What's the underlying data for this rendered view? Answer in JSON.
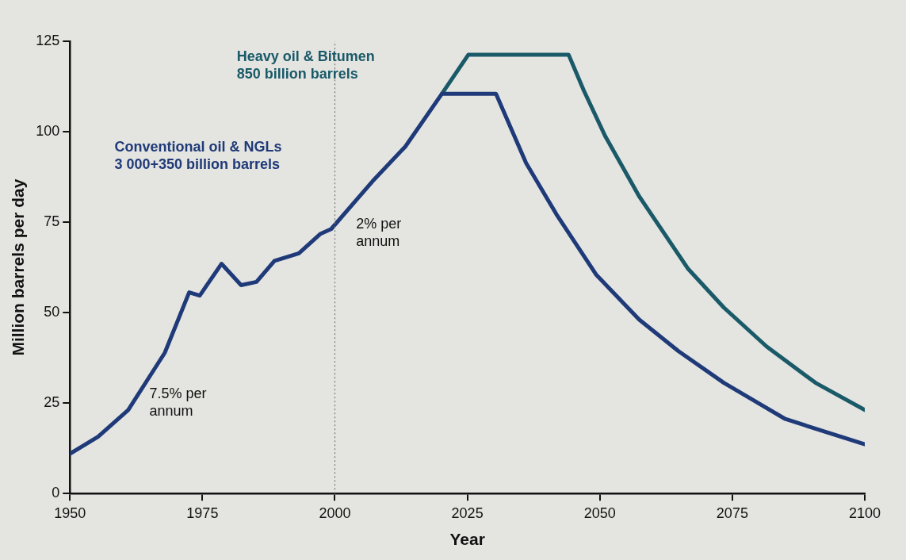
{
  "chart_data": {
    "type": "line",
    "xlabel": "Year",
    "ylabel": "Million barrels per day",
    "xlim": [
      1950,
      2100
    ],
    "xticks": [
      1950,
      1975,
      2000,
      2025,
      2050,
      2075,
      2100
    ],
    "ylim": [
      0,
      125
    ],
    "yticks": [
      0,
      25,
      50,
      75,
      100,
      125
    ],
    "series": [
      {
        "name": "Conventional oil & NGLs\n3 000+350 billion barrels",
        "color": "#1f3a78",
        "x": [
          1950,
          1955.3,
          1961,
          1967.9,
          1972.5,
          1974.5,
          1978.6,
          1982.3,
          1985.2,
          1988.6,
          1993.2,
          1997.3,
          1999.3,
          2007.1,
          2013.3,
          2020.2,
          2030.4,
          2036.1,
          2041.8,
          2049.3,
          2057.4,
          2064.8,
          2073.4,
          2085,
          2100
        ],
        "values": [
          11,
          15.7,
          23.1,
          38.9,
          55.6,
          54.7,
          63.5,
          57.6,
          58.5,
          64.3,
          66.4,
          71.8,
          73.1,
          86.3,
          95.9,
          110.5,
          110.5,
          91.3,
          77.2,
          60.5,
          48.1,
          39.4,
          30.6,
          20.6,
          13.6
        ]
      },
      {
        "name": "Heavy oil & Bitumen\n850 billion barrels",
        "color": "#1a5a68",
        "x": [
          2020.2,
          2025.2,
          2044.1,
          2047,
          2051,
          2057.4,
          2066.6,
          2073.4,
          2081.5,
          2090.7,
          2100
        ],
        "values": [
          110.5,
          121.3,
          121.3,
          111.3,
          98.8,
          82.2,
          62.2,
          51.4,
          40.6,
          30.6,
          23.1
        ]
      }
    ],
    "ref_lines": [
      {
        "axis": "x",
        "value": 2000,
        "color": "#777777",
        "line_style": "dotted"
      }
    ],
    "annotations": [
      "7.5% per annum",
      "2% per annum"
    ]
  }
}
